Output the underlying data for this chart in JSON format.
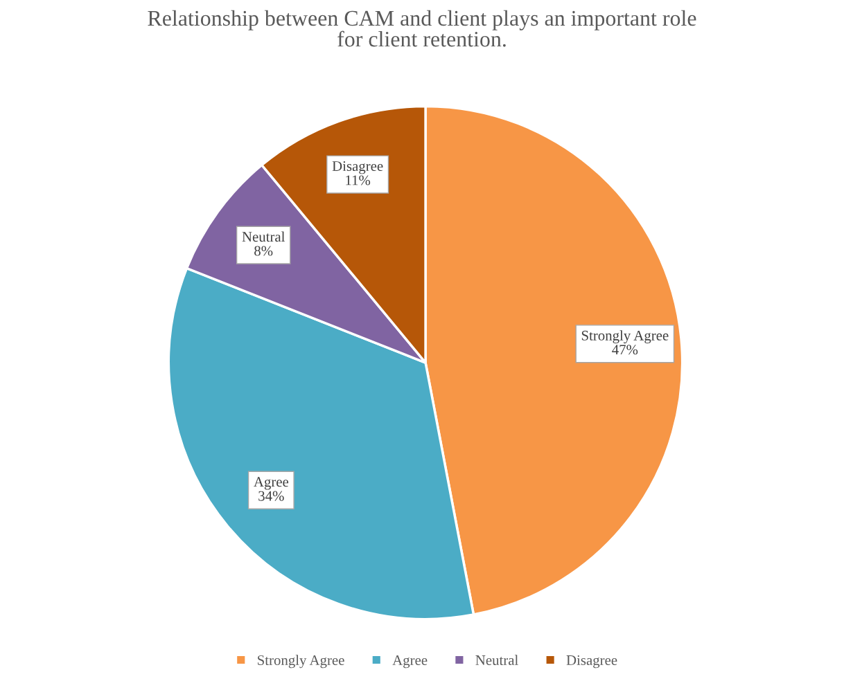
{
  "chart_data": {
    "type": "pie",
    "title": "Relationship between CAM and client plays an important role\nfor client retention.",
    "categories": [
      "Strongly Agree",
      "Agree",
      "Neutral",
      "Disagree"
    ],
    "values": [
      47,
      34,
      8,
      11
    ],
    "value_labels": [
      "47%",
      "34%",
      "8%",
      "11%"
    ],
    "colors": [
      "#f79646",
      "#4bacc6",
      "#8064a2",
      "#b65708"
    ],
    "legend": "bottom"
  }
}
